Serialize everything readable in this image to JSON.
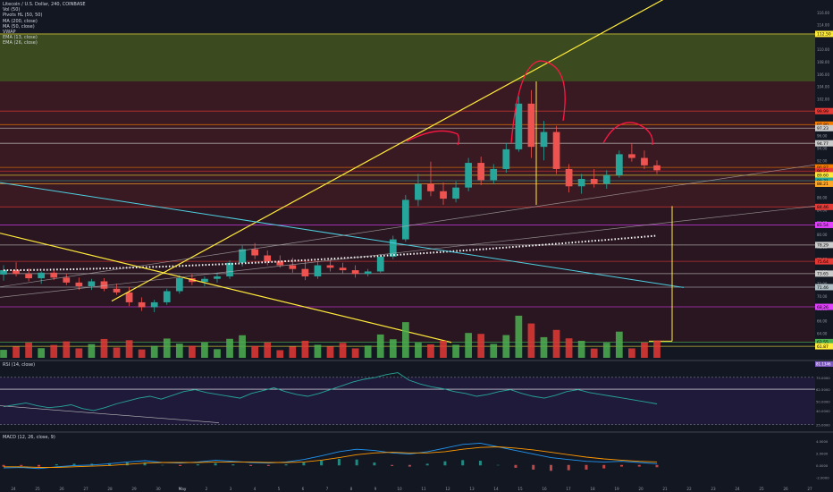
{
  "header": {
    "title": "Litecoin / U.S. Dollar, 240, COINBASE",
    "indicators": [
      "Vol (50)",
      "Pivots HL (50, 50)",
      "MA (200, close)",
      "MA (50, close)",
      "VWAP",
      "EMA (13, close)",
      "EMA (26, close)"
    ]
  },
  "panes": {
    "rsi_label": "RSI (14, close)",
    "macd_label": "MACD (12, 26, close, 9)"
  },
  "chart_data": {
    "type": "candlestick",
    "symbol": "LTCUSD",
    "timeframe": "240",
    "exchange": "COINBASE",
    "x_ticks": [
      "24",
      "25",
      "26",
      "27",
      "28",
      "29",
      "30",
      "May",
      "2",
      "3",
      "4",
      "5",
      "6",
      "7",
      "8",
      "9",
      "10",
      "11",
      "12",
      "13",
      "14",
      "15",
      "16",
      "17",
      "18",
      "19",
      "20",
      "21",
      "22",
      "23",
      "24",
      "25",
      "26",
      "27"
    ],
    "price_ticks": [
      "116.00",
      "114.00",
      "110.00",
      "108.00",
      "106.00",
      "104.00",
      "102.00",
      "100.00",
      "98.00",
      "96.00",
      "94.00",
      "92.00",
      "90.00",
      "88.00",
      "86.00",
      "84.00",
      "82.00",
      "80.00",
      "78.00",
      "76.00",
      "74.00",
      "72.00",
      "70.00",
      "68.00",
      "66.00",
      "64.00",
      "62.00"
    ],
    "price_range": [
      60,
      118
    ],
    "price_labels": [
      {
        "value": "112.50",
        "color": "#ffeb3b"
      },
      {
        "value": "99.99",
        "color": "#e53935"
      },
      {
        "value": "97.80",
        "color": "#f57c00"
      },
      {
        "value": "97.23",
        "color": "#cccccc"
      },
      {
        "value": "94.77",
        "color": "#cccccc"
      },
      {
        "value": "90.87",
        "color": "#f57c00"
      },
      {
        "value": "90.27",
        "color": "#e53935"
      },
      {
        "value": "89.60",
        "color": "#ffeb3b"
      },
      {
        "value": "88.71",
        "color": "#26a69a"
      },
      {
        "value": "88.21",
        "color": "#ffa726"
      },
      {
        "value": "84.46",
        "color": "#e53935"
      },
      {
        "value": "81.54",
        "color": "#e040fb"
      },
      {
        "value": "78.29",
        "color": "#cccccc"
      },
      {
        "value": "75.64",
        "color": "#e53935"
      },
      {
        "value": "73.65",
        "color": "#cccccc"
      },
      {
        "value": "71.46",
        "color": "#b0bec5"
      },
      {
        "value": "68.26",
        "color": "#e040fb"
      },
      {
        "value": "62.55",
        "color": "#4caf50"
      },
      {
        "value": "61.87",
        "color": "#ffeb3b"
      }
    ],
    "rsi": {
      "ticks": [
        "75.0000",
        "62.5000",
        "50.0000",
        "40.0000",
        "25.0000"
      ],
      "current": "81.1346",
      "current_label_color": "#7e57c2",
      "values": [
        44,
        46,
        48,
        45,
        43,
        44,
        46,
        42,
        40,
        43,
        47,
        50,
        53,
        55,
        52,
        56,
        60,
        62,
        59,
        57,
        55,
        53,
        58,
        61,
        64,
        60,
        57,
        55,
        58,
        62,
        66,
        70,
        73,
        75,
        78,
        80,
        72,
        68,
        65,
        63,
        60,
        58,
        55,
        57,
        60,
        62,
        58,
        55,
        53,
        56,
        60,
        62,
        59,
        57,
        55,
        53,
        51,
        49,
        47
      ]
    },
    "macd": {
      "ticks": [
        "4.0000",
        "2.0000",
        "0.0000",
        "-2.0000"
      ],
      "macd_line": [
        -0.5,
        -0.4,
        -0.6,
        -0.3,
        -0.1,
        0.0,
        0.2,
        0.5,
        0.7,
        0.4,
        0.3,
        0.5,
        0.8,
        0.6,
        0.4,
        0.3,
        0.5,
        0.9,
        1.5,
        2.2,
        2.6,
        2.4,
        2.0,
        1.8,
        2.2,
        2.8,
        3.4,
        3.6,
        3.0,
        2.4,
        1.8,
        1.2,
        0.9,
        0.6,
        0.5,
        0.6,
        0.4,
        0.2
      ],
      "signal_line": [
        -0.3,
        -0.3,
        -0.4,
        -0.4,
        -0.3,
        -0.2,
        -0.1,
        0.1,
        0.3,
        0.4,
        0.4,
        0.4,
        0.5,
        0.5,
        0.5,
        0.4,
        0.4,
        0.5,
        0.8,
        1.2,
        1.7,
        2.0,
        2.1,
        2.0,
        2.0,
        2.2,
        2.6,
        2.9,
        3.0,
        2.8,
        2.5,
        2.1,
        1.7,
        1.3,
        1.0,
        0.8,
        0.6,
        0.5
      ]
    },
    "candles": [
      {
        "o": 73.5,
        "h": 75.0,
        "l": 72.5,
        "c": 74.2
      },
      {
        "o": 74.2,
        "h": 75.5,
        "l": 73.2,
        "c": 73.6
      },
      {
        "o": 73.6,
        "h": 74.5,
        "l": 72.4,
        "c": 72.9
      },
      {
        "o": 72.9,
        "h": 74.0,
        "l": 72.0,
        "c": 73.8
      },
      {
        "o": 73.8,
        "h": 74.2,
        "l": 72.6,
        "c": 73.0
      },
      {
        "o": 73.0,
        "h": 73.6,
        "l": 71.8,
        "c": 72.2
      },
      {
        "o": 72.2,
        "h": 73.0,
        "l": 71.0,
        "c": 71.6
      },
      {
        "o": 71.6,
        "h": 72.8,
        "l": 71.0,
        "c": 72.4
      },
      {
        "o": 72.4,
        "h": 72.9,
        "l": 70.8,
        "c": 71.2
      },
      {
        "o": 71.2,
        "h": 72.0,
        "l": 70.2,
        "c": 70.6
      },
      {
        "o": 70.6,
        "h": 71.5,
        "l": 68.4,
        "c": 69.0
      },
      {
        "o": 69.0,
        "h": 69.8,
        "l": 67.6,
        "c": 68.2
      },
      {
        "o": 68.2,
        "h": 69.4,
        "l": 67.4,
        "c": 69.0
      },
      {
        "o": 69.0,
        "h": 71.2,
        "l": 68.6,
        "c": 70.8
      },
      {
        "o": 70.8,
        "h": 73.4,
        "l": 70.4,
        "c": 72.9
      },
      {
        "o": 72.9,
        "h": 73.6,
        "l": 71.8,
        "c": 72.3
      },
      {
        "o": 72.3,
        "h": 73.2,
        "l": 71.6,
        "c": 72.8
      },
      {
        "o": 72.8,
        "h": 73.8,
        "l": 72.2,
        "c": 73.2
      },
      {
        "o": 73.2,
        "h": 75.8,
        "l": 72.8,
        "c": 75.4
      },
      {
        "o": 75.4,
        "h": 78.2,
        "l": 74.8,
        "c": 77.6
      },
      {
        "o": 77.6,
        "h": 78.6,
        "l": 76.0,
        "c": 76.6
      },
      {
        "o": 76.6,
        "h": 77.4,
        "l": 75.0,
        "c": 75.6
      },
      {
        "o": 75.6,
        "h": 76.6,
        "l": 74.6,
        "c": 75.0
      },
      {
        "o": 75.0,
        "h": 76.2,
        "l": 73.8,
        "c": 74.4
      },
      {
        "o": 74.4,
        "h": 75.8,
        "l": 72.6,
        "c": 73.2
      },
      {
        "o": 73.2,
        "h": 75.6,
        "l": 72.8,
        "c": 75.0
      },
      {
        "o": 75.0,
        "h": 76.0,
        "l": 74.0,
        "c": 74.6
      },
      {
        "o": 74.6,
        "h": 75.4,
        "l": 73.6,
        "c": 74.2
      },
      {
        "o": 74.2,
        "h": 75.0,
        "l": 73.0,
        "c": 73.6
      },
      {
        "o": 73.6,
        "h": 74.4,
        "l": 73.2,
        "c": 74.0
      },
      {
        "o": 74.0,
        "h": 76.8,
        "l": 73.8,
        "c": 76.4
      },
      {
        "o": 76.4,
        "h": 79.8,
        "l": 76.0,
        "c": 79.2
      },
      {
        "o": 79.2,
        "h": 86.4,
        "l": 78.8,
        "c": 85.6
      },
      {
        "o": 85.6,
        "h": 89.8,
        "l": 84.6,
        "c": 88.2
      },
      {
        "o": 88.2,
        "h": 91.8,
        "l": 86.2,
        "c": 87.0
      },
      {
        "o": 87.0,
        "h": 88.4,
        "l": 84.8,
        "c": 85.8
      },
      {
        "o": 85.8,
        "h": 88.6,
        "l": 85.2,
        "c": 87.6
      },
      {
        "o": 87.6,
        "h": 92.4,
        "l": 87.0,
        "c": 91.6
      },
      {
        "o": 91.6,
        "h": 92.6,
        "l": 88.0,
        "c": 88.8
      },
      {
        "o": 88.8,
        "h": 91.4,
        "l": 88.2,
        "c": 90.6
      },
      {
        "o": 90.6,
        "h": 94.8,
        "l": 90.0,
        "c": 93.8
      },
      {
        "o": 93.8,
        "h": 102.4,
        "l": 93.4,
        "c": 101.2
      },
      {
        "o": 101.2,
        "h": 103.4,
        "l": 92.4,
        "c": 94.2
      },
      {
        "o": 94.2,
        "h": 98.4,
        "l": 92.0,
        "c": 96.6
      },
      {
        "o": 96.6,
        "h": 97.6,
        "l": 89.8,
        "c": 90.6
      },
      {
        "o": 90.6,
        "h": 91.4,
        "l": 86.8,
        "c": 87.8
      },
      {
        "o": 87.8,
        "h": 89.8,
        "l": 86.6,
        "c": 89.0
      },
      {
        "o": 89.0,
        "h": 90.6,
        "l": 87.6,
        "c": 88.2
      },
      {
        "o": 88.2,
        "h": 90.4,
        "l": 87.4,
        "c": 89.6
      },
      {
        "o": 89.6,
        "h": 93.6,
        "l": 89.2,
        "c": 93.0
      },
      {
        "o": 93.0,
        "h": 94.8,
        "l": 91.8,
        "c": 92.4
      },
      {
        "o": 92.4,
        "h": 93.6,
        "l": 90.6,
        "c": 91.2
      },
      {
        "o": 91.2,
        "h": 92.0,
        "l": 89.8,
        "c": 90.4
      }
    ]
  }
}
